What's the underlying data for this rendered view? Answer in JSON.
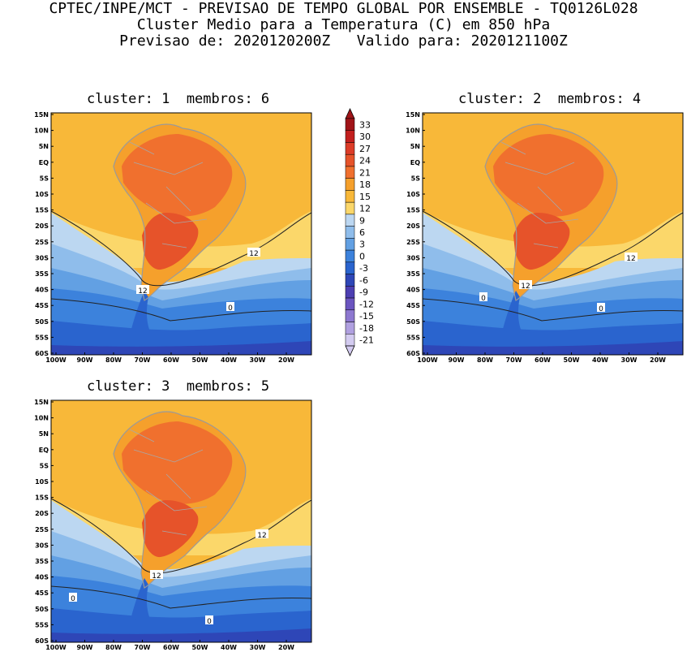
{
  "header": {
    "line1": "CPTEC/INPE/MCT - PREVISAO DE TEMPO GLOBAL POR ENSEMBLE - TQ0126L028",
    "line2": "Cluster Medio para a Temperatura (C) em 850 hPa",
    "line3": "Previsao de: 2020120200Z   Valido para: 2020121100Z"
  },
  "panels": [
    {
      "title": "cluster: 1  membros: 6",
      "contour_labels": [
        "12",
        "12",
        "0"
      ]
    },
    {
      "title": "cluster: 2  membros: 4",
      "contour_labels": [
        "12",
        "12",
        "0",
        "0"
      ]
    },
    {
      "title": "cluster: 3  membros: 5",
      "contour_labels": [
        "12",
        "12",
        "0",
        "0"
      ]
    }
  ],
  "lat_ticks": [
    "15N",
    "10N",
    "5N",
    "EQ",
    "5S",
    "10S",
    "15S",
    "20S",
    "25S",
    "30S",
    "35S",
    "40S",
    "45S",
    "50S",
    "55S",
    "60S"
  ],
  "lon_ticks": [
    "100W",
    "90W",
    "80W",
    "70W",
    "60W",
    "50W",
    "40W",
    "30W",
    "20W"
  ],
  "colorbar": {
    "labels": [
      "33",
      "30",
      "27",
      "24",
      "21",
      "18",
      "15",
      "12",
      "9",
      "6",
      "3",
      "0",
      "-3",
      "-6",
      "-9",
      "-12",
      "-15",
      "-18",
      "-21"
    ],
    "colors": [
      "#a01418",
      "#c21f1e",
      "#dc3c28",
      "#e6532a",
      "#f0702e",
      "#f5a02c",
      "#f8b839",
      "#fbd76a",
      "#bcd7f1",
      "#8fbdeb",
      "#62a0e3",
      "#3c82dc",
      "#2a64ce",
      "#2e46b7",
      "#4d3fb2",
      "#6b55c0",
      "#8d78d0",
      "#b0a0e0",
      "#d3cbf0"
    ]
  }
}
